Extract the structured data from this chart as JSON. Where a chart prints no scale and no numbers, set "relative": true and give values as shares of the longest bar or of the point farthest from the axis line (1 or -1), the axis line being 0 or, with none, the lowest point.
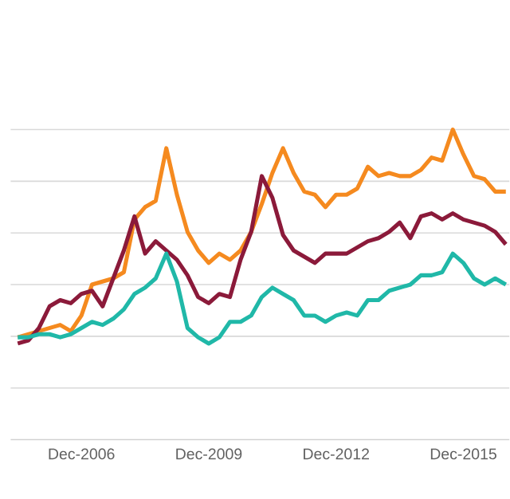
{
  "chart_data": {
    "type": "line",
    "relative": true,
    "grid": "y",
    "line_style": "solid",
    "marker": "none",
    "x": [
      "2005-06",
      "2005-09",
      "2005-12",
      "2006-03",
      "2006-06",
      "2006-09",
      "2006-12",
      "2007-03",
      "2007-06",
      "2007-09",
      "2007-12",
      "2008-03",
      "2008-06",
      "2008-09",
      "2008-12",
      "2009-03",
      "2009-06",
      "2009-09",
      "2009-12",
      "2010-03",
      "2010-06",
      "2010-09",
      "2010-12",
      "2011-03",
      "2011-06",
      "2011-09",
      "2011-12",
      "2012-03",
      "2012-06",
      "2012-09",
      "2012-12",
      "2013-03",
      "2013-06",
      "2013-09",
      "2013-12",
      "2014-03",
      "2014-06",
      "2014-09",
      "2014-12",
      "2015-03",
      "2015-06",
      "2015-09",
      "2015-12",
      "2016-03",
      "2016-06",
      "2016-09",
      "2016-12"
    ],
    "xlim": [
      "2005-04",
      "2017-01"
    ],
    "xticks": [
      {
        "value": "2006-12",
        "label": "Dec-2006"
      },
      {
        "value": "2009-12",
        "label": "Dec-2009"
      },
      {
        "value": "2012-12",
        "label": "Dec-2012"
      },
      {
        "value": "2015-12",
        "label": "Dec-2015"
      }
    ],
    "series": [
      {
        "color": "#f58a1f",
        "values": [
          0.33,
          0.34,
          0.35,
          0.36,
          0.37,
          0.35,
          0.4,
          0.5,
          0.51,
          0.52,
          0.54,
          0.71,
          0.75,
          0.77,
          0.94,
          0.79,
          0.67,
          0.61,
          0.57,
          0.6,
          0.58,
          0.61,
          0.67,
          0.76,
          0.86,
          0.94,
          0.86,
          0.8,
          0.79,
          0.75,
          0.79,
          0.79,
          0.81,
          0.88,
          0.85,
          0.86,
          0.85,
          0.85,
          0.87,
          0.91,
          0.9,
          1.0,
          0.92,
          0.85,
          0.84,
          0.8,
          0.8
        ]
      },
      {
        "color": "#8b1a3a",
        "values": [
          0.31,
          0.32,
          0.36,
          0.43,
          0.45,
          0.44,
          0.47,
          0.48,
          0.43,
          0.52,
          0.61,
          0.72,
          0.6,
          0.64,
          0.61,
          0.58,
          0.53,
          0.46,
          0.44,
          0.47,
          0.46,
          0.58,
          0.67,
          0.85,
          0.78,
          0.66,
          0.61,
          0.59,
          0.57,
          0.6,
          0.6,
          0.6,
          0.62,
          0.64,
          0.65,
          0.67,
          0.7,
          0.65,
          0.72,
          0.73,
          0.71,
          0.73,
          0.71,
          0.7,
          0.69,
          0.67,
          0.63
        ]
      },
      {
        "color": "#20b8a8",
        "values": [
          0.33,
          0.33,
          0.34,
          0.34,
          0.33,
          0.34,
          0.36,
          0.38,
          0.37,
          0.39,
          0.42,
          0.47,
          0.49,
          0.52,
          0.6,
          0.51,
          0.36,
          0.33,
          0.31,
          0.33,
          0.38,
          0.38,
          0.4,
          0.46,
          0.49,
          0.47,
          0.45,
          0.4,
          0.4,
          0.38,
          0.4,
          0.41,
          0.4,
          0.45,
          0.45,
          0.48,
          0.49,
          0.5,
          0.53,
          0.53,
          0.54,
          0.6,
          0.57,
          0.52,
          0.5,
          0.52,
          0.5
        ]
      }
    ]
  }
}
